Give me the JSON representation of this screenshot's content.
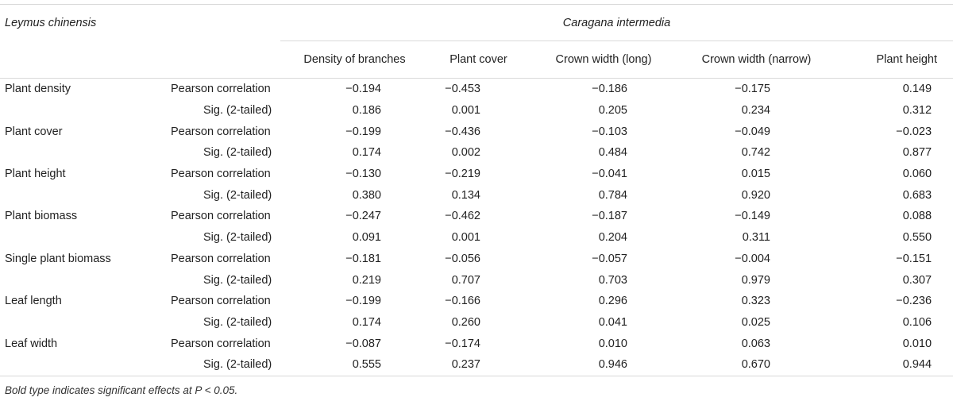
{
  "header": {
    "row_species": "Leymus chinensis",
    "col_species": "Caragana intermedia",
    "columns": [
      "Density of branches",
      "Plant cover",
      "Crown width (long)",
      "Crown width (narrow)",
      "Plant height"
    ]
  },
  "stat_labels": {
    "pearson": "Pearson correlation",
    "sig": "Sig. (2-tailed)"
  },
  "rows": [
    {
      "variable": "Plant density",
      "pearson": [
        "−0.194",
        "−0.453",
        "−0.186",
        "−0.175",
        "0.149"
      ],
      "sig": [
        "0.186",
        "0.001",
        "0.205",
        "0.234",
        "0.312"
      ],
      "bold": [
        false,
        true,
        false,
        false,
        false
      ]
    },
    {
      "variable": "Plant cover",
      "pearson": [
        "−0.199",
        "−0.436",
        "−0.103",
        "−0.049",
        "−0.023"
      ],
      "sig": [
        "0.174",
        "0.002",
        "0.484",
        "0.742",
        "0.877"
      ],
      "bold": [
        false,
        true,
        false,
        false,
        false
      ]
    },
    {
      "variable": "Plant height",
      "pearson": [
        "−0.130",
        "−0.219",
        "−0.041",
        "0.015",
        "0.060"
      ],
      "sig": [
        "0.380",
        "0.134",
        "0.784",
        "0.920",
        "0.683"
      ],
      "bold": [
        false,
        false,
        false,
        false,
        false
      ]
    },
    {
      "variable": "Plant biomass",
      "pearson": [
        "−0.247",
        "−0.462",
        "−0.187",
        "−0.149",
        "0.088"
      ],
      "sig": [
        "0.091",
        "0.001",
        "0.204",
        "0.311",
        "0.550"
      ],
      "bold": [
        false,
        true,
        false,
        false,
        false
      ]
    },
    {
      "variable": "Single plant biomass",
      "pearson": [
        "−0.181",
        "−0.056",
        "−0.057",
        "−0.004",
        "−0.151"
      ],
      "sig": [
        "0.219",
        "0.707",
        "0.703",
        "0.979",
        "0.307"
      ],
      "bold": [
        false,
        false,
        false,
        false,
        false
      ]
    },
    {
      "variable": "Leaf length",
      "pearson": [
        "−0.199",
        "−0.166",
        "0.296",
        "0.323",
        "−0.236"
      ],
      "sig": [
        "0.174",
        "0.260",
        "0.041",
        "0.025",
        "0.106"
      ],
      "bold": [
        false,
        false,
        true,
        true,
        false
      ]
    },
    {
      "variable": "Leaf width",
      "pearson": [
        "−0.087",
        "−0.174",
        "0.010",
        "0.063",
        "0.010"
      ],
      "sig": [
        "0.555",
        "0.237",
        "0.946",
        "0.670",
        "0.944"
      ],
      "bold": [
        false,
        false,
        false,
        false,
        false
      ]
    }
  ],
  "footnote": "Bold type indicates significant effects at P < 0.05."
}
